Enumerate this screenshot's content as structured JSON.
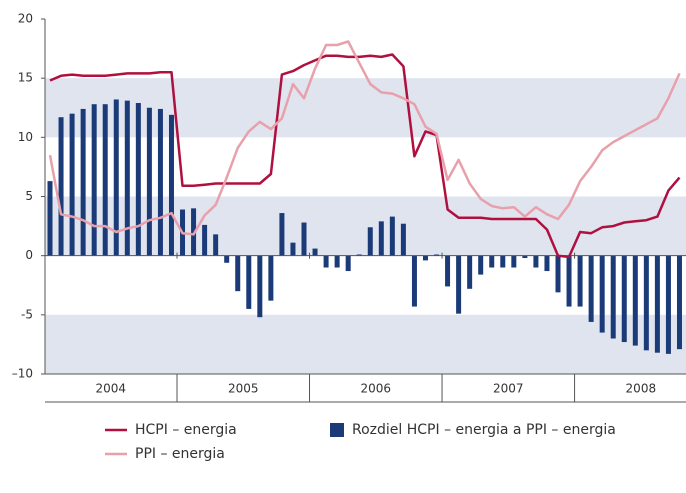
{
  "chart_data": {
    "type": "bar_line",
    "categories": [
      null,
      null,
      null,
      null,
      null,
      null,
      "2004",
      null,
      null,
      null,
      null,
      null,
      null,
      null,
      null,
      null,
      null,
      null,
      "2005",
      null,
      null,
      null,
      null,
      null,
      null,
      null,
      null,
      null,
      null,
      null,
      "2006",
      null,
      null,
      null,
      null,
      null,
      null,
      null,
      null,
      null,
      null,
      null,
      "2007",
      null,
      null,
      null,
      null,
      null,
      null,
      null,
      null,
      null,
      null,
      null,
      "2008",
      null,
      null,
      null
    ],
    "series": [
      {
        "name": "HCPI – energia",
        "type": "line",
        "color": "#b0103f",
        "values": [
          14.8,
          15.2,
          15.3,
          15.2,
          15.2,
          15.2,
          15.3,
          15.4,
          15.4,
          15.4,
          15.5,
          15.5,
          5.9,
          5.9,
          6.0,
          6.1,
          6.1,
          6.1,
          6.1,
          6.1,
          6.9,
          15.3,
          15.6,
          16.1,
          16.5,
          16.9,
          16.9,
          16.8,
          16.8,
          16.9,
          16.8,
          17.0,
          16.0,
          8.4,
          10.5,
          10.2,
          3.9,
          3.2,
          3.2,
          3.2,
          3.1,
          3.1,
          3.1,
          3.1,
          3.1,
          2.2,
          0.0,
          -0.1,
          2.0,
          1.9,
          2.4,
          2.5,
          2.8,
          2.9,
          3.0,
          3.3,
          5.5,
          6.6
        ]
      },
      {
        "name": "PPI – energia",
        "type": "line",
        "color": "#e8a0ab",
        "values": [
          8.5,
          3.5,
          3.3,
          3.0,
          2.5,
          2.5,
          2.0,
          2.3,
          2.5,
          3.0,
          3.2,
          3.6,
          1.9,
          1.8,
          3.4,
          4.3,
          6.6,
          9.1,
          10.5,
          11.3,
          10.7,
          11.6,
          14.5,
          13.3,
          15.8,
          17.8,
          17.8,
          18.1,
          16.3,
          14.5,
          13.8,
          13.7,
          13.3,
          12.8,
          10.9,
          10.3,
          6.4,
          8.1,
          6.1,
          4.8,
          4.2,
          4.0,
          4.1,
          3.3,
          4.1,
          3.5,
          3.1,
          4.3,
          6.3,
          7.5,
          8.9,
          9.6,
          10.1,
          10.6,
          11.1,
          11.6,
          13.3,
          15.4
        ]
      },
      {
        "name": "Rozdiel HCPI – energia a PPI – energia",
        "type": "bar",
        "color": "#1b3a78",
        "values": [
          6.3,
          11.7,
          12.0,
          12.4,
          12.8,
          12.8,
          13.2,
          13.1,
          12.9,
          12.5,
          12.4,
          11.9,
          3.9,
          4.0,
          2.6,
          1.8,
          -0.6,
          -3.0,
          -4.5,
          -5.2,
          -3.8,
          3.6,
          1.1,
          2.8,
          0.6,
          -1.0,
          -1.0,
          -1.3,
          0.1,
          2.4,
          2.9,
          3.3,
          2.7,
          -4.3,
          -0.4,
          0.1,
          -2.6,
          -4.9,
          -2.8,
          -1.6,
          -1.0,
          -1.0,
          -1.0,
          -0.2,
          -1.0,
          -1.3,
          -3.1,
          -4.3,
          -4.3,
          -5.6,
          -6.5,
          -7.0,
          -7.3,
          -7.6,
          -8.0,
          -8.2,
          -8.3,
          -7.9
        ]
      }
    ],
    "ylim": [
      -10,
      20
    ],
    "yticks": [
      {
        "value": -10,
        "label": "–10"
      },
      {
        "value": -5,
        "label": "-5"
      },
      0,
      5,
      10,
      15,
      20
    ],
    "bands": true
  }
}
